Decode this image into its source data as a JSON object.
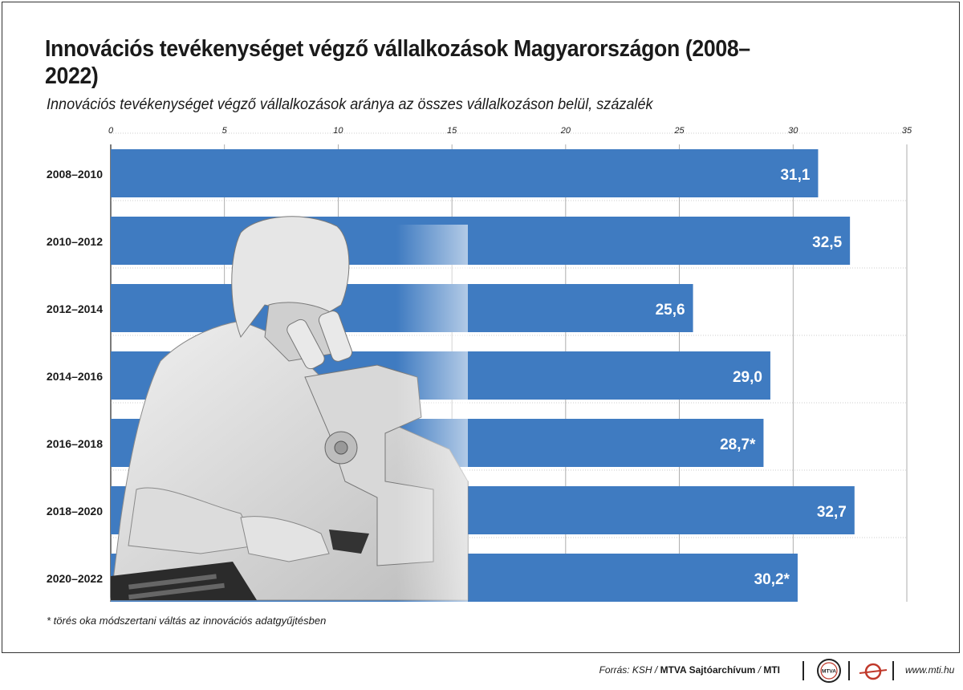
{
  "title": "Innovációs tevékenységet végző vállalkozások Magyarországon (2008–2022)",
  "subtitle": "Innovációs tevékenységet végző vállalkozások aránya az összes vállalkozáson belül, százalék",
  "footnote": "* törés oka módszertani váltás az innovációs adatgyűjtésben",
  "footer": {
    "source_prefix": "Forrás: KSH /",
    "source_archive": "MTVA Sajtóarchívum",
    "source_sep": "/",
    "source_mti": "MTI",
    "logo_mtva_text": "MTVA",
    "url": "www.mti.hu"
  },
  "colors": {
    "bar": "#3f7bc1",
    "grid": "#9a9a9a",
    "bar_label": "#ffffff"
  },
  "chart_data": {
    "type": "bar",
    "orientation": "horizontal",
    "categories": [
      "2008–2010",
      "2010–2012",
      "2012–2014",
      "2014–2016",
      "2016–2018",
      "2018–2020",
      "2020–2022"
    ],
    "values": [
      31.1,
      32.5,
      25.6,
      29.0,
      28.7,
      32.7,
      30.2
    ],
    "value_labels": [
      "31,1",
      "32,5",
      "25,6",
      "29,0",
      "28,7*",
      "32,7",
      "30,2*"
    ],
    "xlim": [
      0,
      35
    ],
    "xticks": [
      0,
      5,
      10,
      15,
      20,
      25,
      30,
      35
    ],
    "xtick_labels": [
      "0",
      "5",
      "10",
      "15",
      "20",
      "25",
      "30",
      "35"
    ],
    "axis_position": "top",
    "grid": true
  }
}
